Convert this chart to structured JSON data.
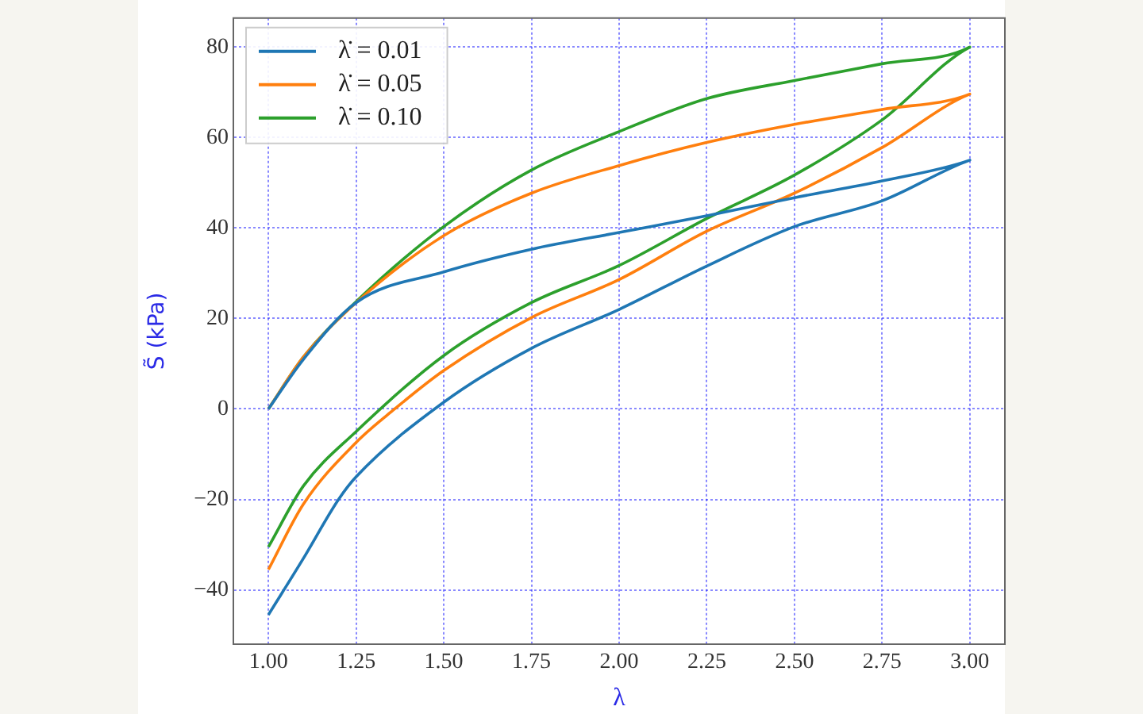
{
  "chart_data": {
    "type": "line",
    "xlabel": "λ",
    "ylabel": "S̃ (kPa)",
    "xlim": [
      0.9,
      3.1
    ],
    "xticks": [
      {
        "value": 1,
        "label": "1.00"
      },
      {
        "value": 1.25,
        "label": "1.25"
      },
      {
        "value": 1.5,
        "label": "1.50"
      },
      {
        "value": 1.75,
        "label": "1.75"
      },
      {
        "value": 2,
        "label": "2.00"
      },
      {
        "value": 2.25,
        "label": "2.25"
      },
      {
        "value": 2.5,
        "label": "2.50"
      },
      {
        "value": 2.75,
        "label": "2.75"
      },
      {
        "value": 3,
        "label": "3.00"
      }
    ],
    "ylim": [
      -52,
      86.4
    ],
    "yticks": [
      {
        "value": -40,
        "label": "−40"
      },
      {
        "value": -20,
        "label": "−20"
      },
      0,
      20,
      40,
      60,
      80
    ],
    "grid": true,
    "legend": "top left",
    "marker": "none",
    "line_style": "solid",
    "series": [
      {
        "name": "λ̇ = 0.01",
        "color": "#1f77b4",
        "x": [
          1,
          1.1,
          1.25,
          1.5,
          1.75,
          2,
          2.25,
          2.5,
          2.75,
          3,
          2.75,
          2.5,
          2.25,
          2,
          1.75,
          1.5,
          1.25,
          1.2,
          1.1,
          1
        ],
        "values": [
          0,
          11,
          23.5,
          30.3,
          35.3,
          39,
          42.7,
          46.7,
          50.4,
          55,
          46,
          40.3,
          31.6,
          22,
          13.4,
          1.5,
          -15,
          -20,
          -33,
          -45.5
        ]
      },
      {
        "name": "λ̇ = 0.05",
        "color": "#ff7f0e",
        "x": [
          1,
          1.1,
          1.25,
          1.5,
          1.75,
          2,
          2.25,
          2.5,
          2.75,
          3,
          2.75,
          2.5,
          2.25,
          2,
          1.75,
          1.5,
          1.36,
          1.25,
          1.1,
          1
        ],
        "values": [
          0,
          11.5,
          23.5,
          38.3,
          47.7,
          53.8,
          58.9,
          62.9,
          66.2,
          69.6,
          57.8,
          47.7,
          39.3,
          28.6,
          20.2,
          8.5,
          0,
          -7.4,
          -21,
          -35.5
        ]
      },
      {
        "name": "λ̇ = 0.10",
        "color": "#2ca02c",
        "x": [
          1,
          1.1,
          1.25,
          1.5,
          1.75,
          2,
          2.25,
          2.5,
          2.75,
          3,
          2.75,
          2.5,
          2.25,
          2,
          1.75,
          1.5,
          1.25,
          1.1,
          1
        ],
        "values": [
          0,
          11.5,
          23.7,
          40.3,
          52.8,
          61.3,
          68.6,
          72.6,
          76.3,
          80,
          63.9,
          51.7,
          42.1,
          31.7,
          23.5,
          11.8,
          -5,
          -17,
          -30.5
        ]
      }
    ]
  }
}
